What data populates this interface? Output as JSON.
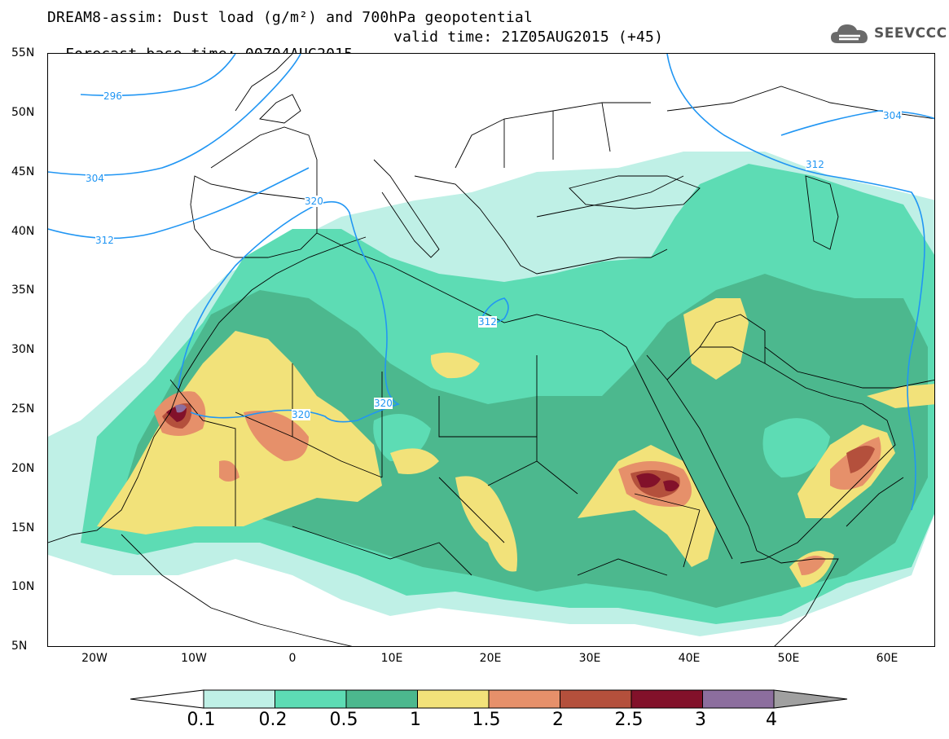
{
  "header": {
    "title": "DREAM8-assim: Dust load (g/m²) and 700hPa geopotential",
    "base_time": "Forecast base time: 00Z04AUG2015",
    "valid_time": "valid time: 21Z05AUG2015 (+45)"
  },
  "logo": {
    "text": "SEEVCCC",
    "icon": "cloud-logo-icon"
  },
  "axes": {
    "lat_labels": [
      "55N",
      "50N",
      "45N",
      "40N",
      "35N",
      "30N",
      "25N",
      "20N",
      "15N",
      "10N",
      "5N"
    ],
    "lon_labels": [
      "20W",
      "10W",
      "0",
      "10E",
      "20E",
      "30E",
      "40E",
      "50E",
      "60E"
    ]
  },
  "contours": {
    "geopotential_labels": [
      "296",
      "304",
      "312",
      "320",
      "312",
      "320",
      "304",
      "312"
    ]
  },
  "colorbar": {
    "labels": [
      "0.1",
      "0.2",
      "0.5",
      "1",
      "1.5",
      "2",
      "2.5",
      "3",
      "4"
    ],
    "colors": [
      "#bff0e6",
      "#5ddcb4",
      "#4cb88e",
      "#f2e27a",
      "#e6906a",
      "#b4503c",
      "#82112a",
      "#8c6e9e",
      "#a0a0a0"
    ]
  },
  "colors": {
    "contour": "#2196f3",
    "borders": "#000000"
  }
}
